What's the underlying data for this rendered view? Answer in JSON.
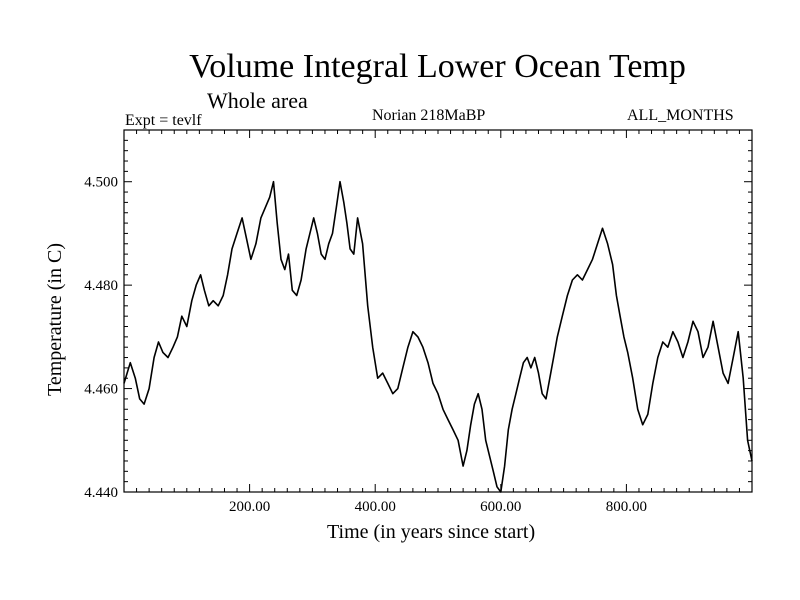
{
  "header": {
    "title": "Volume Integral Lower Ocean Temp",
    "subtitle": "Whole area",
    "expt_label": "Expt = tevlf",
    "center_label": "Norian 218MaBP",
    "right_label": "ALL_MONTHS"
  },
  "chart_data": {
    "type": "line",
    "title": "Volume Integral Lower Ocean Temp",
    "xlabel": "Time (in years since start)",
    "ylabel": "Temperature (in C)",
    "xlim": [
      0,
      1000
    ],
    "ylim": [
      4.44,
      4.51
    ],
    "x_ticks": [
      200,
      400,
      600,
      800
    ],
    "x_tick_labels": [
      "200.00",
      "400.00",
      "600.00",
      "800.00"
    ],
    "y_ticks": [
      4.44,
      4.46,
      4.48,
      4.5
    ],
    "y_tick_labels": [
      "4.440",
      "4.460",
      "4.480",
      "4.500"
    ],
    "grid": false,
    "series": [
      {
        "name": "Volume Integral Lower Ocean Temp",
        "x": [
          0,
          10,
          18,
          25,
          32,
          40,
          48,
          55,
          62,
          70,
          78,
          85,
          92,
          100,
          108,
          115,
          122,
          128,
          135,
          142,
          150,
          158,
          165,
          172,
          180,
          188,
          195,
          202,
          210,
          218,
          225,
          232,
          238,
          244,
          250,
          256,
          262,
          268,
          275,
          282,
          290,
          296,
          302,
          308,
          314,
          320,
          326,
          332,
          338,
          344,
          350,
          355,
          360,
          366,
          372,
          380,
          388,
          396,
          404,
          412,
          420,
          428,
          436,
          444,
          452,
          460,
          468,
          476,
          484,
          492,
          500,
          508,
          516,
          524,
          532,
          540,
          546,
          552,
          558,
          564,
          570,
          576,
          582,
          588,
          594,
          600,
          606,
          612,
          618,
          624,
          630,
          636,
          642,
          648,
          654,
          660,
          666,
          672,
          678,
          684,
          690,
          698,
          706,
          714,
          722,
          730,
          738,
          746,
          754,
          762,
          770,
          778,
          784,
          790,
          796,
          802,
          810,
          818,
          826,
          834,
          842,
          850,
          858,
          866,
          874,
          882,
          890,
          898,
          906,
          914,
          922,
          930,
          938,
          946,
          954,
          962,
          970,
          978,
          986,
          993,
          1000
        ],
        "values": [
          4.461,
          4.465,
          4.462,
          4.458,
          4.457,
          4.46,
          4.466,
          4.469,
          4.467,
          4.466,
          4.468,
          4.47,
          4.474,
          4.472,
          4.477,
          4.48,
          4.482,
          4.479,
          4.476,
          4.477,
          4.476,
          4.478,
          4.482,
          4.487,
          4.49,
          4.493,
          4.489,
          4.485,
          4.488,
          4.493,
          4.495,
          4.497,
          4.5,
          4.492,
          4.485,
          4.483,
          4.486,
          4.479,
          4.478,
          4.481,
          4.487,
          4.49,
          4.493,
          4.49,
          4.486,
          4.485,
          4.488,
          4.49,
          4.495,
          4.5,
          4.496,
          4.492,
          4.487,
          4.486,
          4.493,
          4.488,
          4.476,
          4.468,
          4.462,
          4.463,
          4.461,
          4.459,
          4.46,
          4.464,
          4.468,
          4.471,
          4.47,
          4.468,
          4.465,
          4.461,
          4.459,
          4.456,
          4.454,
          4.452,
          4.45,
          4.445,
          4.448,
          4.453,
          4.457,
          4.459,
          4.456,
          4.45,
          4.447,
          4.444,
          4.441,
          4.44,
          4.445,
          4.452,
          4.456,
          4.459,
          4.462,
          4.465,
          4.466,
          4.464,
          4.466,
          4.463,
          4.459,
          4.458,
          4.462,
          4.466,
          4.47,
          4.474,
          4.478,
          4.481,
          4.482,
          4.481,
          4.483,
          4.485,
          4.488,
          4.491,
          4.488,
          4.484,
          4.478,
          4.474,
          4.47,
          4.467,
          4.462,
          4.456,
          4.453,
          4.455,
          4.461,
          4.466,
          4.469,
          4.468,
          4.471,
          4.469,
          4.466,
          4.469,
          4.473,
          4.471,
          4.466,
          4.468,
          4.473,
          4.468,
          4.463,
          4.461,
          4.466,
          4.471,
          4.462,
          4.45,
          4.446
        ]
      }
    ]
  }
}
